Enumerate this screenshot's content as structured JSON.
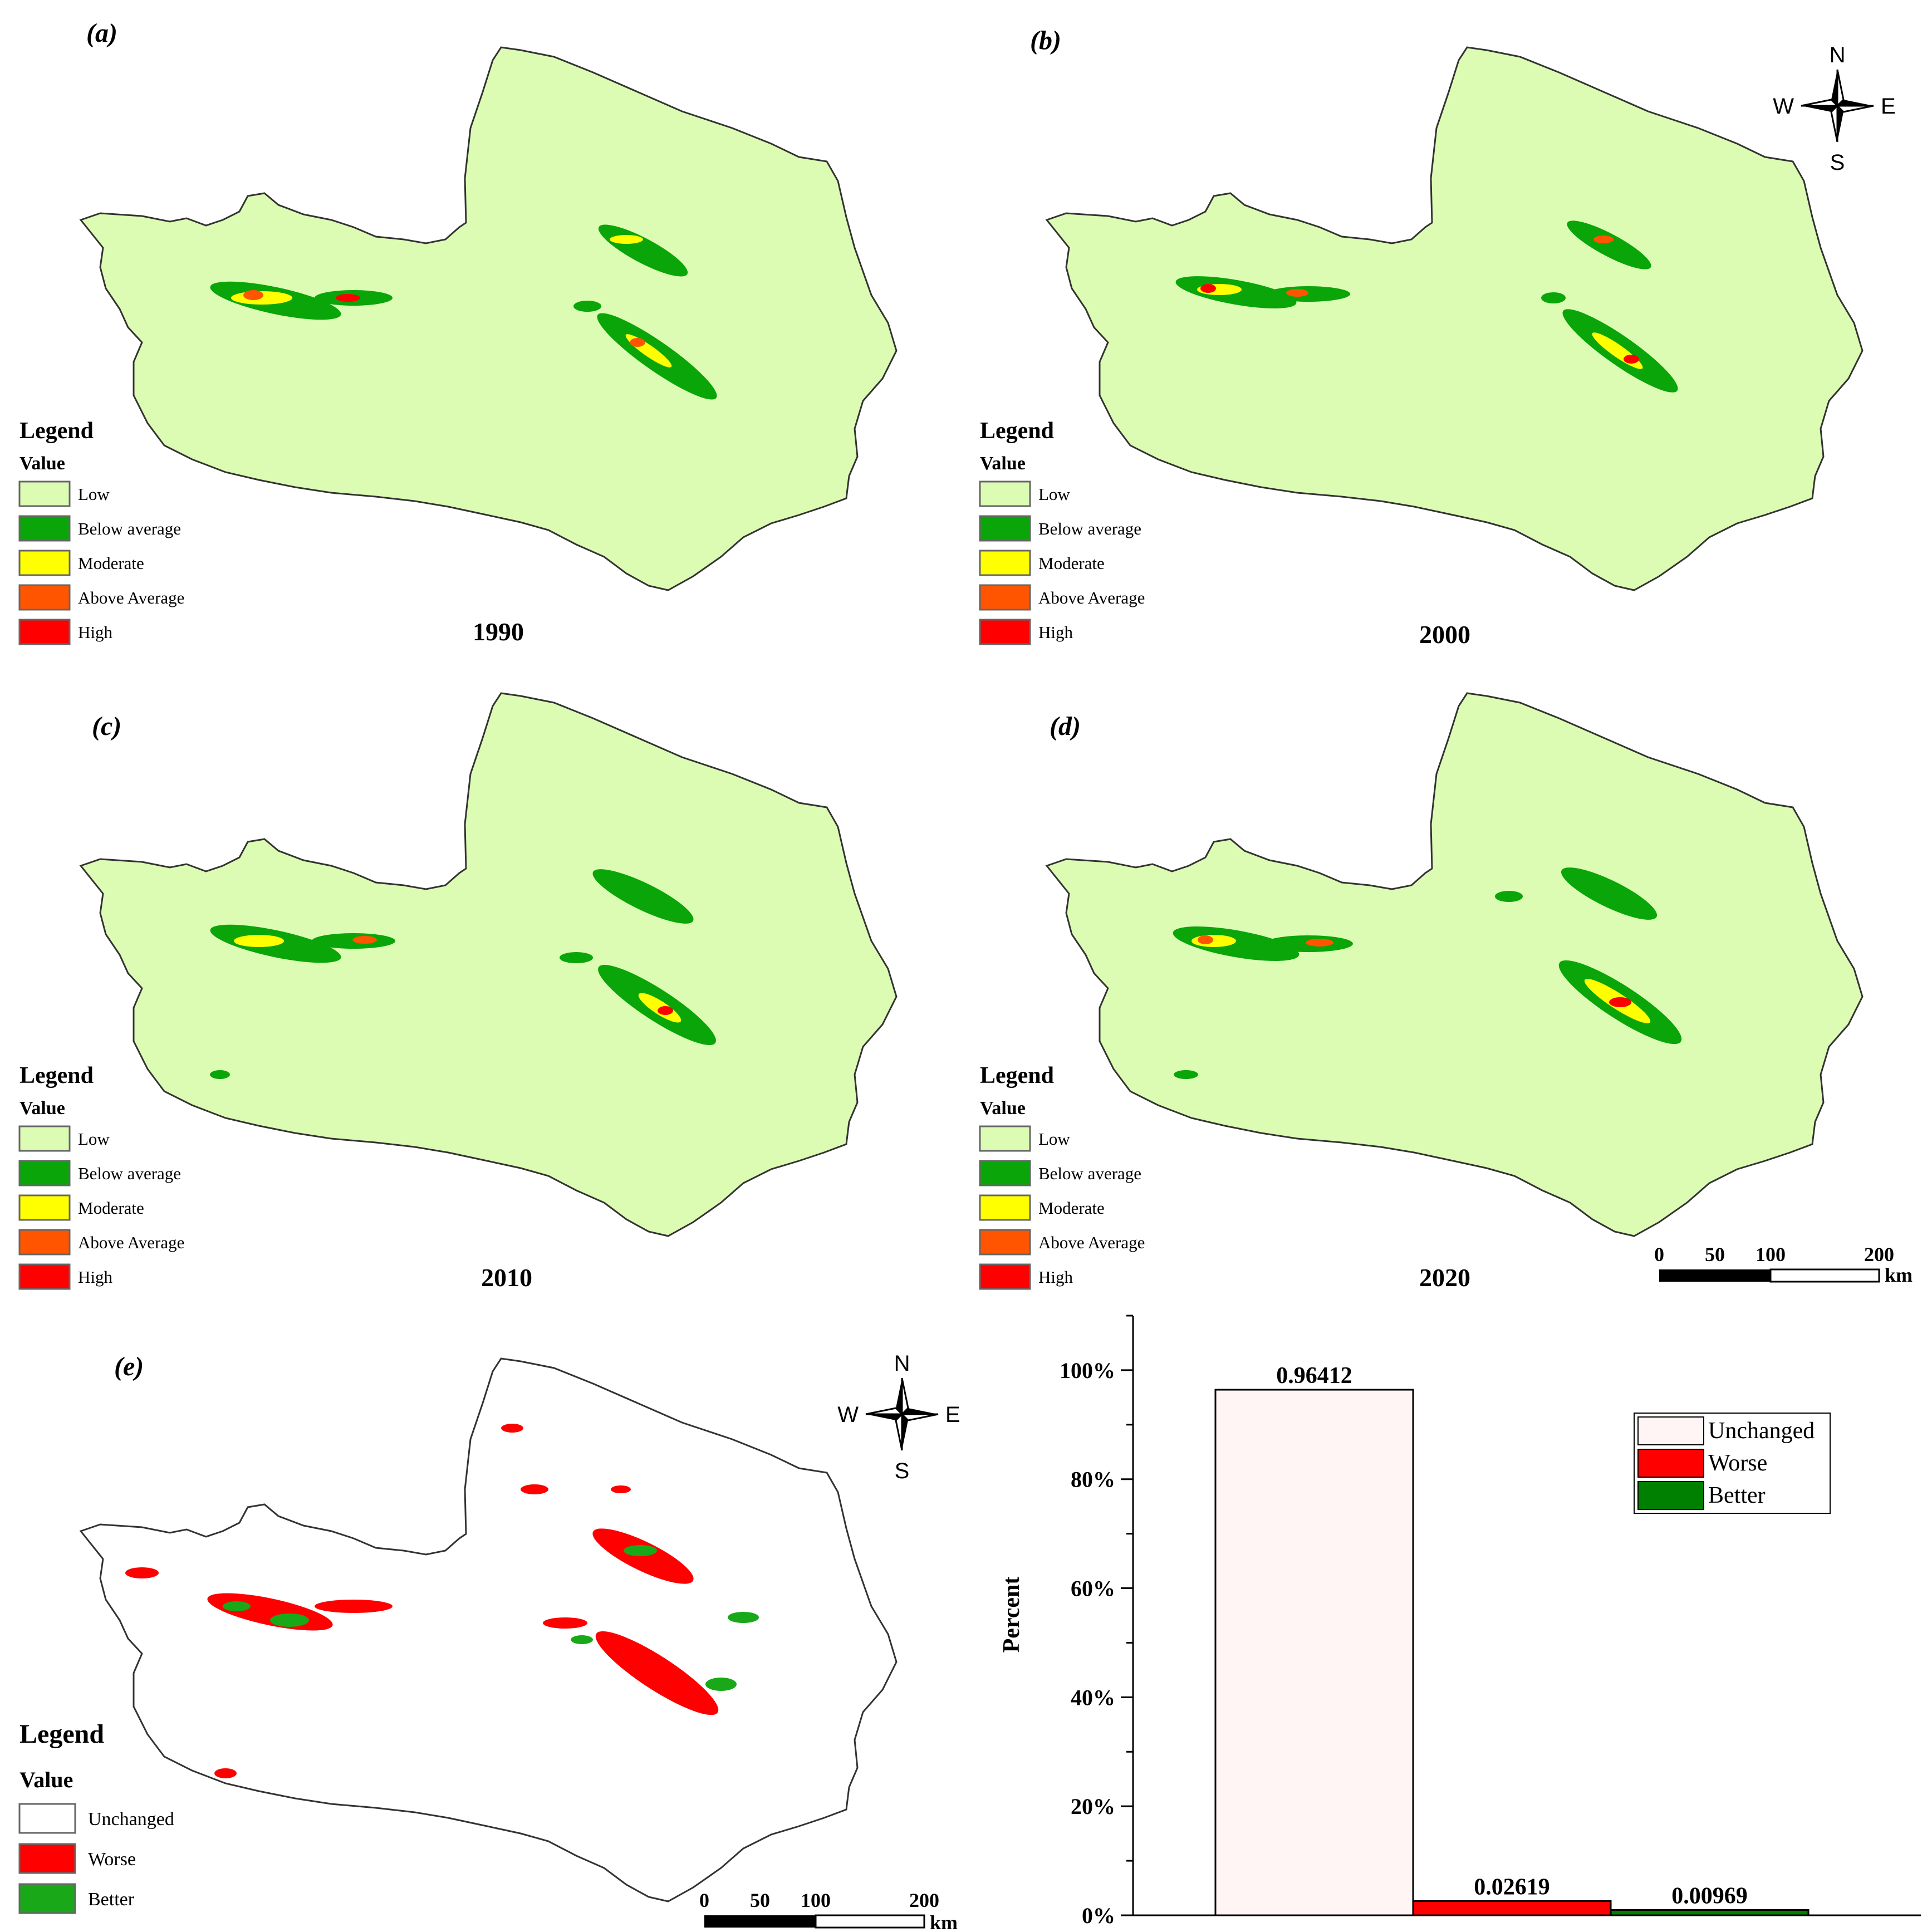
{
  "panels": [
    {
      "label": "(a)",
      "year": "1990"
    },
    {
      "label": "(b)",
      "year": "2000"
    },
    {
      "label": "(c)",
      "year": "2010"
    },
    {
      "label": "(d)",
      "year": "2020"
    },
    {
      "label": "(e)",
      "year": ""
    }
  ],
  "legend": {
    "title": "Legend",
    "subtitle": "Value",
    "classes": [
      {
        "name": "Low",
        "color": "#dcfcb4"
      },
      {
        "name": "Below average",
        "color": "#09a509"
      },
      {
        "name": "Moderate",
        "color": "#ffff00"
      },
      {
        "name": "Above Average",
        "color": "#ff5500"
      },
      {
        "name": "High",
        "color": "#ff0000"
      }
    ]
  },
  "change_legend": {
    "title": "Legend",
    "subtitle": "Value",
    "classes": [
      {
        "name": "Unchanged",
        "color": "#ffffff"
      },
      {
        "name": "Worse",
        "color": "#ff0000"
      },
      {
        "name": "Better",
        "color": "#18a818"
      }
    ]
  },
  "north_arrow": {
    "n": "N",
    "s": "S",
    "e": "E",
    "w": "W"
  },
  "scale_bar": {
    "ticks": [
      "0",
      "50",
      "100",
      "200"
    ],
    "unit": "km"
  },
  "chart_data": {
    "type": "bar",
    "categories": [
      "Unchanged",
      "Worse",
      "Better"
    ],
    "values": [
      0.96412,
      0.02619,
      0.00969
    ],
    "value_labels": [
      "0.96412",
      "0.02619",
      "0.00969"
    ],
    "colors": [
      "#fff5f5",
      "#ff0000",
      "#008000"
    ],
    "ylabel": "Percent",
    "yticks": [
      "0%",
      "20%",
      "40%",
      "60%",
      "80%",
      "100%"
    ],
    "ylim": [
      0,
      1.1
    ],
    "legend_position": "top-right"
  }
}
